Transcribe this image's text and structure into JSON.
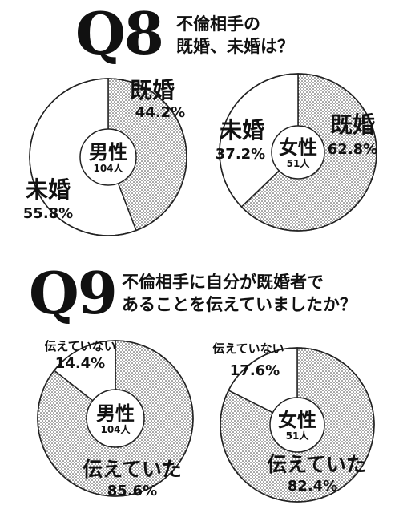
{
  "q8": {
    "label": "Q8",
    "question_line1": "不倫相手の",
    "question_line2": "既婚、未婚は？"
  },
  "q9": {
    "label": "Q9",
    "question_line1": "不倫相手に自分が既婚者で",
    "question_line2": "あることを伝えていましたか？"
  },
  "chart_data": [
    {
      "type": "pie",
      "question": "Q8",
      "center_label": "男性",
      "center_count": "104人",
      "slices": [
        {
          "label": "既婚",
          "value": 44.2,
          "value_text": "44.2%",
          "pattern": "dotted"
        },
        {
          "label": "未婚",
          "value": 55.8,
          "value_text": "55.8%",
          "pattern": "white"
        }
      ]
    },
    {
      "type": "pie",
      "question": "Q8",
      "center_label": "女性",
      "center_count": "51人",
      "slices": [
        {
          "label": "既婚",
          "value": 62.8,
          "value_text": "62.8%",
          "pattern": "dotted"
        },
        {
          "label": "未婚",
          "value": 37.2,
          "value_text": "37.2%",
          "pattern": "white"
        }
      ]
    },
    {
      "type": "pie",
      "question": "Q9",
      "center_label": "男性",
      "center_count": "104人",
      "slices": [
        {
          "label": "伝えていた",
          "value": 85.6,
          "value_text": "85.6%",
          "pattern": "dotted"
        },
        {
          "label": "伝えていない",
          "value": 14.4,
          "value_text": "14.4%",
          "pattern": "white"
        }
      ]
    },
    {
      "type": "pie",
      "question": "Q9",
      "center_label": "女性",
      "center_count": "51人",
      "slices": [
        {
          "label": "伝えていた",
          "value": 82.4,
          "value_text": "82.4%",
          "pattern": "dotted"
        },
        {
          "label": "伝えていない",
          "value": 17.6,
          "value_text": "17.6%",
          "pattern": "white"
        }
      ]
    }
  ]
}
